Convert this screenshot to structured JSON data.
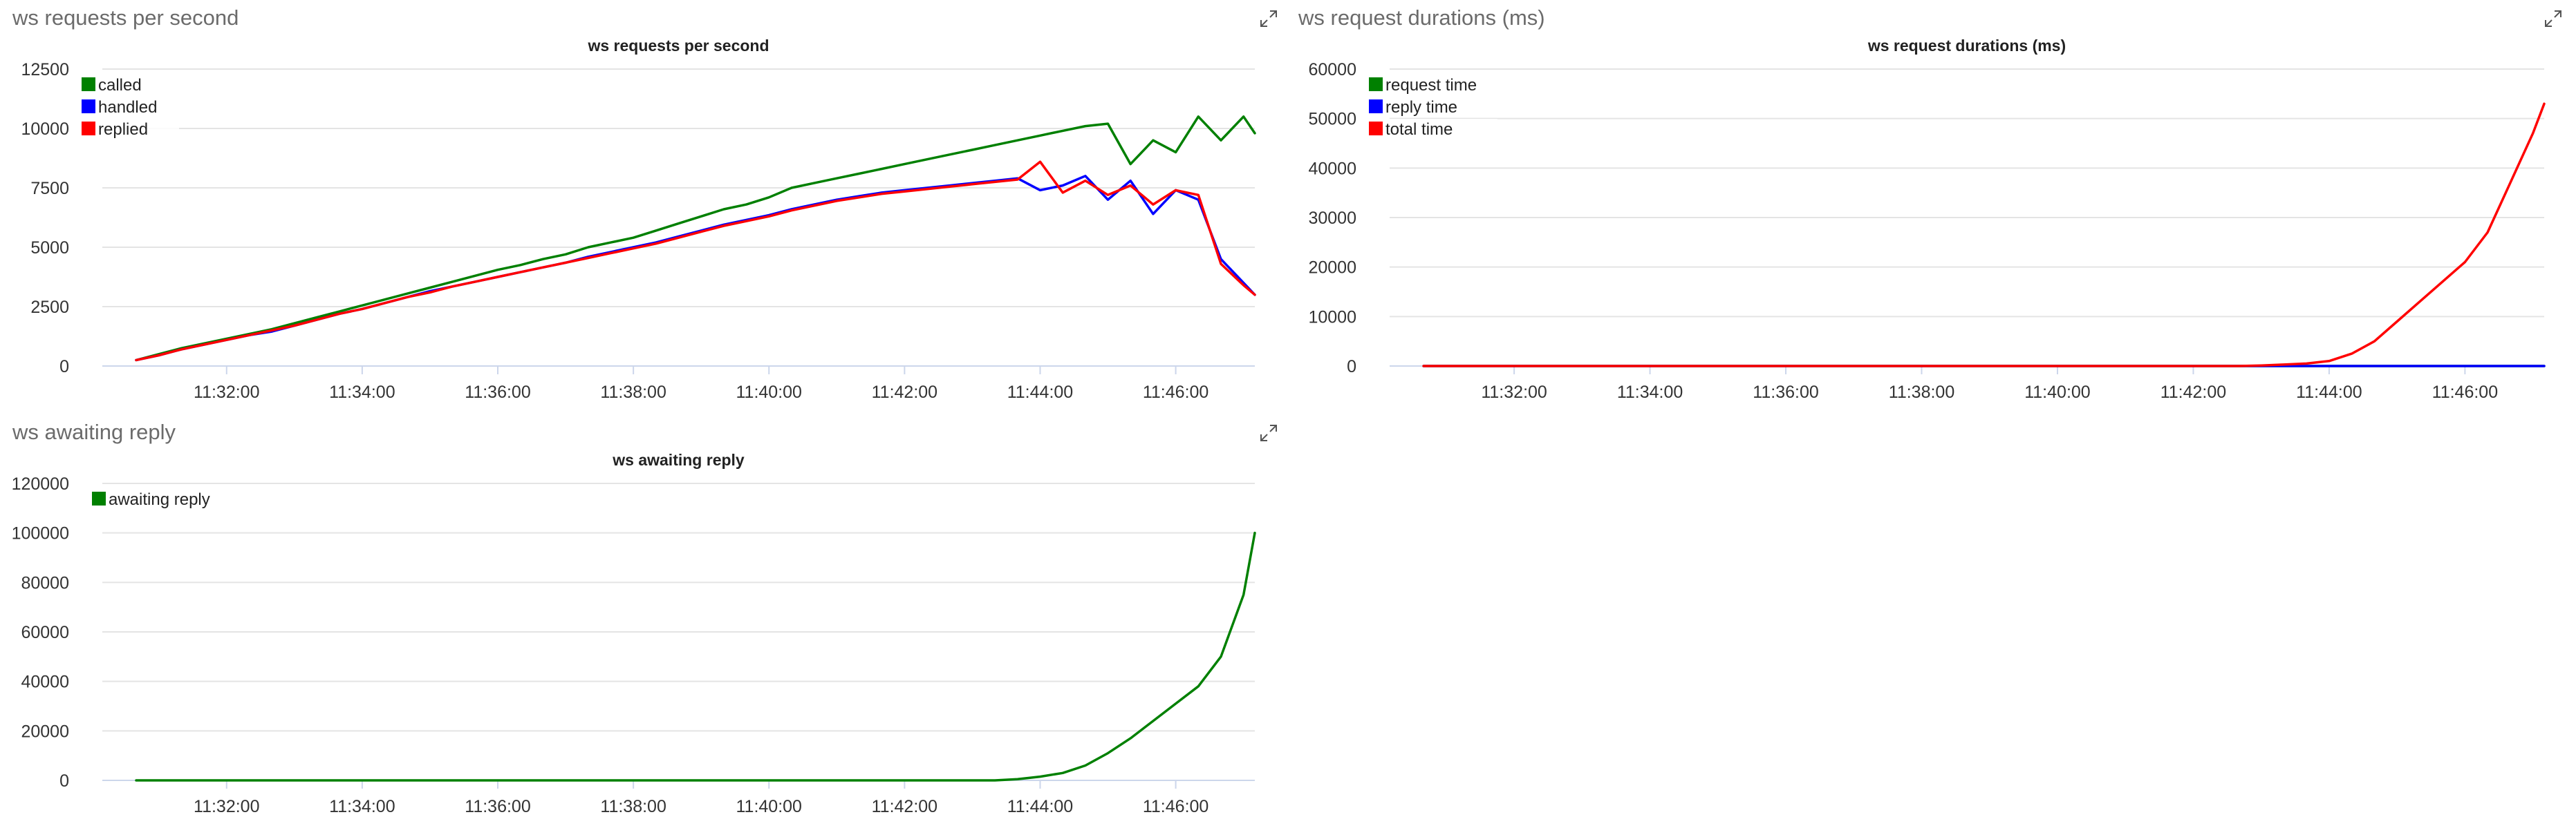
{
  "panels": {
    "requests": {
      "title": "ws requests per second"
    },
    "durations": {
      "title": "ws request durations (ms)"
    },
    "awaiting": {
      "title": "ws awaiting reply"
    }
  },
  "icons": {
    "expand": "expand-icon"
  },
  "colors": {
    "green": "#008000",
    "blue": "#0000ff",
    "red": "#ff0000",
    "grid": "#e4e4e4",
    "axisText": "#333333"
  },
  "chart_data": [
    {
      "id": "requests",
      "type": "line",
      "title": "ws requests per second",
      "xlabel": "",
      "ylabel": "",
      "ylim": [
        0,
        12500
      ],
      "yticks": [
        0,
        2500,
        5000,
        7500,
        10000,
        12500
      ],
      "yticklabels": [
        "0",
        "2500",
        "5000",
        "7500",
        "10000",
        "12500"
      ],
      "xticklabels": [
        "11:32:00",
        "11:34:00",
        "11:36:00",
        "11:38:00",
        "11:40:00",
        "11:42:00",
        "11:44:00",
        "11:46:00"
      ],
      "grid": true,
      "legend": "top-left",
      "x": [
        "11:30:40",
        "11:31:00",
        "11:31:20",
        "11:31:40",
        "11:32:00",
        "11:32:20",
        "11:32:40",
        "11:33:00",
        "11:33:20",
        "11:33:40",
        "11:34:00",
        "11:34:20",
        "11:34:40",
        "11:35:00",
        "11:35:20",
        "11:35:40",
        "11:36:00",
        "11:36:20",
        "11:36:40",
        "11:37:00",
        "11:37:20",
        "11:37:40",
        "11:38:00",
        "11:38:20",
        "11:38:40",
        "11:39:00",
        "11:39:20",
        "11:39:40",
        "11:40:00",
        "11:40:20",
        "11:40:40",
        "11:41:00",
        "11:41:20",
        "11:41:40",
        "11:42:00",
        "11:42:20",
        "11:42:40",
        "11:43:00",
        "11:43:20",
        "11:43:40",
        "11:44:00",
        "11:44:20",
        "11:44:40",
        "11:45:00",
        "11:45:20",
        "11:45:40",
        "11:46:00",
        "11:46:20",
        "11:46:40",
        "11:47:00",
        "11:47:10"
      ],
      "series": [
        {
          "name": "called",
          "color": "#008000",
          "values": [
            250,
            500,
            750,
            950,
            1150,
            1350,
            1550,
            1800,
            2050,
            2300,
            2550,
            2800,
            3050,
            3300,
            3550,
            3800,
            4050,
            4250,
            4500,
            4700,
            5000,
            5200,
            5400,
            5700,
            6000,
            6300,
            6600,
            6800,
            7100,
            7500,
            7700,
            7900,
            8100,
            8300,
            8500,
            8700,
            8900,
            9100,
            9300,
            9500,
            9700,
            9900,
            10100,
            10200,
            8500,
            9500,
            9000,
            10500,
            9500,
            10500,
            9800
          ]
        },
        {
          "name": "handled",
          "color": "#0000ff",
          "values": [
            250,
            450,
            700,
            900,
            1100,
            1300,
            1450,
            1700,
            1950,
            2200,
            2400,
            2650,
            2900,
            3150,
            3350,
            3550,
            3750,
            3950,
            4150,
            4350,
            4600,
            4800,
            5000,
            5200,
            5450,
            5700,
            5950,
            6150,
            6350,
            6600,
            6800,
            7000,
            7150,
            7300,
            7400,
            7500,
            7600,
            7700,
            7800,
            7900,
            7400,
            7600,
            8000,
            7000,
            7800,
            6400,
            7400,
            7000,
            4500,
            3500,
            3000
          ]
        },
        {
          "name": "replied",
          "color": "#ff0000",
          "values": [
            250,
            450,
            700,
            900,
            1100,
            1300,
            1500,
            1700,
            1950,
            2200,
            2400,
            2650,
            2900,
            3100,
            3350,
            3550,
            3750,
            3950,
            4150,
            4350,
            4550,
            4750,
            4950,
            5150,
            5400,
            5650,
            5900,
            6100,
            6300,
            6550,
            6750,
            6950,
            7100,
            7250,
            7350,
            7450,
            7550,
            7650,
            7750,
            7850,
            8600,
            7300,
            7800,
            7200,
            7600,
            6800,
            7400,
            7200,
            4300,
            3400,
            3000
          ]
        }
      ]
    },
    {
      "id": "durations",
      "type": "line",
      "title": "ws request durations (ms)",
      "xlabel": "",
      "ylabel": "",
      "ylim": [
        0,
        60000
      ],
      "yticks": [
        0,
        10000,
        20000,
        30000,
        40000,
        50000,
        60000
      ],
      "yticklabels": [
        "0",
        "10000",
        "20000",
        "30000",
        "40000",
        "50000",
        "60000"
      ],
      "xticklabels": [
        "11:32:00",
        "11:34:00",
        "11:36:00",
        "11:38:00",
        "11:40:00",
        "11:42:00",
        "11:44:00",
        "11:46:00"
      ],
      "grid": true,
      "legend": "top-left",
      "x": [
        "11:30:40",
        "11:31:00",
        "11:31:20",
        "11:31:40",
        "11:32:00",
        "11:32:20",
        "11:32:40",
        "11:33:00",
        "11:33:20",
        "11:33:40",
        "11:34:00",
        "11:34:20",
        "11:34:40",
        "11:35:00",
        "11:35:20",
        "11:35:40",
        "11:36:00",
        "11:36:20",
        "11:36:40",
        "11:37:00",
        "11:37:20",
        "11:37:40",
        "11:38:00",
        "11:38:20",
        "11:38:40",
        "11:39:00",
        "11:39:20",
        "11:39:40",
        "11:40:00",
        "11:40:20",
        "11:40:40",
        "11:41:00",
        "11:41:20",
        "11:41:40",
        "11:42:00",
        "11:42:20",
        "11:42:40",
        "11:43:00",
        "11:43:20",
        "11:43:40",
        "11:44:00",
        "11:44:20",
        "11:44:40",
        "11:45:00",
        "11:45:20",
        "11:45:40",
        "11:46:00",
        "11:46:20",
        "11:46:40",
        "11:47:00",
        "11:47:10"
      ],
      "series": [
        {
          "name": "request time",
          "color": "#008000",
          "values": [
            0,
            0,
            0,
            0,
            0,
            0,
            0,
            0,
            0,
            0,
            0,
            0,
            0,
            0,
            0,
            0,
            0,
            0,
            0,
            0,
            0,
            0,
            0,
            0,
            0,
            0,
            0,
            0,
            0,
            0,
            0,
            0,
            0,
            0,
            0,
            0,
            0,
            0,
            0,
            0,
            0,
            0,
            0,
            0,
            0,
            0,
            0,
            0,
            0,
            0,
            0
          ]
        },
        {
          "name": "reply time",
          "color": "#0000ff",
          "values": [
            0,
            0,
            0,
            0,
            0,
            0,
            0,
            0,
            0,
            0,
            0,
            0,
            0,
            0,
            0,
            0,
            0,
            0,
            0,
            0,
            0,
            0,
            0,
            0,
            0,
            0,
            0,
            0,
            0,
            0,
            0,
            0,
            0,
            0,
            0,
            0,
            0,
            0,
            0,
            0,
            0,
            0,
            0,
            0,
            0,
            0,
            0,
            0,
            0,
            0,
            0
          ]
        },
        {
          "name": "total time",
          "color": "#ff0000",
          "values": [
            0,
            0,
            0,
            0,
            0,
            0,
            0,
            0,
            0,
            0,
            0,
            0,
            0,
            0,
            0,
            0,
            0,
            0,
            0,
            0,
            0,
            0,
            0,
            0,
            0,
            0,
            0,
            0,
            0,
            0,
            0,
            0,
            0,
            0,
            0,
            0,
            0,
            100,
            300,
            500,
            1000,
            2500,
            5000,
            9000,
            13000,
            17000,
            21000,
            27000,
            37000,
            47000,
            53000
          ]
        }
      ]
    },
    {
      "id": "awaiting",
      "type": "line",
      "title": "ws awaiting reply",
      "xlabel": "",
      "ylabel": "",
      "ylim": [
        0,
        120000
      ],
      "yticks": [
        0,
        20000,
        40000,
        60000,
        80000,
        100000,
        120000
      ],
      "yticklabels": [
        "0",
        "20000",
        "40000",
        "60000",
        "80000",
        "100000",
        "120000"
      ],
      "xticklabels": [
        "11:32:00",
        "11:34:00",
        "11:36:00",
        "11:38:00",
        "11:40:00",
        "11:42:00",
        "11:44:00",
        "11:46:00"
      ],
      "grid": true,
      "legend": "top-left",
      "x": [
        "11:30:40",
        "11:31:00",
        "11:31:20",
        "11:31:40",
        "11:32:00",
        "11:32:20",
        "11:32:40",
        "11:33:00",
        "11:33:20",
        "11:33:40",
        "11:34:00",
        "11:34:20",
        "11:34:40",
        "11:35:00",
        "11:35:20",
        "11:35:40",
        "11:36:00",
        "11:36:20",
        "11:36:40",
        "11:37:00",
        "11:37:20",
        "11:37:40",
        "11:38:00",
        "11:38:20",
        "11:38:40",
        "11:39:00",
        "11:39:20",
        "11:39:40",
        "11:40:00",
        "11:40:20",
        "11:40:40",
        "11:41:00",
        "11:41:20",
        "11:41:40",
        "11:42:00",
        "11:42:20",
        "11:42:40",
        "11:43:00",
        "11:43:20",
        "11:43:40",
        "11:44:00",
        "11:44:20",
        "11:44:40",
        "11:45:00",
        "11:45:20",
        "11:45:40",
        "11:46:00",
        "11:46:20",
        "11:46:40",
        "11:47:00",
        "11:47:10"
      ],
      "series": [
        {
          "name": "awaiting reply",
          "color": "#008000",
          "values": [
            0,
            0,
            0,
            0,
            0,
            0,
            0,
            0,
            0,
            0,
            0,
            0,
            0,
            0,
            0,
            0,
            0,
            0,
            0,
            0,
            0,
            0,
            0,
            0,
            0,
            0,
            0,
            0,
            0,
            0,
            0,
            0,
            0,
            0,
            0,
            0,
            0,
            0,
            0,
            500,
            1500,
            3000,
            6000,
            11000,
            17000,
            24000,
            31000,
            38000,
            50000,
            75000,
            100000
          ]
        }
      ]
    }
  ]
}
